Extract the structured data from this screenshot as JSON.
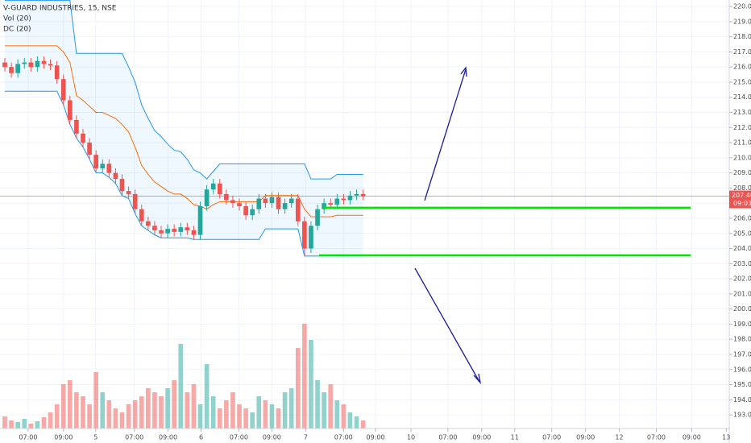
{
  "chart_data": {
    "type": "candlestick",
    "title": "V-GUARD INDUSTRIES, 15, NSE",
    "indicators": [
      "Vol (20)",
      "DC (20)"
    ],
    "open": [
      216.3,
      216.0,
      215.6,
      216.2,
      216.3,
      216.0,
      216.4,
      216.2,
      216.1,
      215.2,
      213.8,
      212.5,
      211.6,
      211.0,
      210.2,
      209.3,
      209.6,
      209.0,
      208.6,
      207.8,
      207.6,
      206.6,
      205.8,
      205.5,
      205.2,
      205.0,
      205.3,
      205.1,
      205.4,
      205.2,
      204.9,
      206.8,
      207.9,
      208.3,
      207.6,
      207.2,
      207.0,
      206.8,
      206.2,
      206.6,
      207.3,
      207.0,
      207.4,
      206.6,
      207.0,
      207.3,
      205.8,
      204.0,
      205.5,
      206.6,
      207.0,
      206.9,
      207.3,
      207.2,
      207.5,
      207.6
    ],
    "high": [
      216.6,
      216.3,
      216.5,
      216.6,
      216.6,
      216.7,
      216.7,
      216.5,
      216.4,
      215.5,
      214.1,
      212.8,
      211.9,
      211.3,
      210.5,
      209.9,
      209.9,
      209.3,
      208.9,
      208.1,
      207.9,
      206.9,
      206.1,
      205.8,
      205.5,
      205.6,
      205.6,
      205.7,
      205.7,
      205.5,
      207.1,
      208.2,
      208.6,
      208.6,
      207.9,
      207.5,
      207.3,
      207.1,
      206.9,
      207.6,
      207.6,
      207.7,
      207.7,
      207.3,
      207.6,
      207.6,
      206.1,
      205.8,
      206.9,
      207.3,
      207.3,
      207.6,
      207.6,
      207.8,
      207.9,
      207.9
    ],
    "low": [
      215.7,
      215.3,
      215.3,
      215.9,
      215.7,
      215.7,
      215.9,
      215.8,
      214.9,
      213.5,
      212.2,
      211.3,
      210.7,
      209.9,
      209.0,
      209.0,
      208.7,
      208.3,
      207.5,
      207.3,
      206.3,
      205.5,
      205.2,
      204.9,
      204.7,
      204.7,
      204.8,
      204.8,
      204.9,
      204.6,
      204.6,
      206.5,
      207.6,
      207.3,
      206.9,
      206.7,
      206.5,
      205.9,
      205.9,
      206.3,
      206.7,
      206.7,
      206.3,
      206.3,
      206.7,
      205.5,
      203.5,
      203.7,
      205.2,
      206.3,
      206.6,
      206.6,
      206.9,
      206.9,
      207.2,
      207.2
    ],
    "close": [
      216.0,
      215.6,
      216.2,
      216.3,
      216.0,
      216.4,
      216.2,
      216.1,
      215.2,
      213.8,
      212.5,
      211.6,
      211.0,
      210.2,
      209.3,
      209.6,
      209.0,
      208.6,
      207.8,
      207.6,
      206.6,
      205.8,
      205.5,
      205.2,
      205.0,
      205.3,
      205.1,
      205.4,
      205.2,
      204.9,
      206.8,
      207.9,
      208.3,
      207.6,
      207.2,
      207.0,
      206.8,
      206.2,
      206.6,
      207.3,
      207.0,
      207.4,
      206.6,
      207.0,
      207.3,
      205.8,
      204.0,
      205.5,
      206.6,
      207.0,
      206.9,
      207.3,
      207.2,
      207.5,
      207.6,
      207.46
    ],
    "volume": [
      15,
      10,
      8,
      12,
      6,
      9,
      14,
      20,
      30,
      55,
      60,
      45,
      40,
      30,
      70,
      45,
      35,
      25,
      20,
      30,
      35,
      40,
      50,
      45,
      40,
      50,
      60,
      105,
      45,
      55,
      30,
      80,
      40,
      25,
      35,
      45,
      30,
      25,
      20,
      40,
      35,
      30,
      25,
      45,
      50,
      100,
      130,
      110,
      60,
      45,
      55,
      35,
      30,
      20,
      15,
      10
    ],
    "dc_upper": [
      220.4,
      220.4,
      220.4,
      220.4,
      220.4,
      220.4,
      220.4,
      220.4,
      220.4,
      220.4,
      220.4,
      216.9,
      216.9,
      216.9,
      216.9,
      216.9,
      216.9,
      216.9,
      216.9,
      216.0,
      215.0,
      213.5,
      212.6,
      211.8,
      211.4,
      210.9,
      210.5,
      210.4,
      209.9,
      209.2,
      209.0,
      208.6,
      209.1,
      209.6,
      209.6,
      209.6,
      209.6,
      209.6,
      209.6,
      209.6,
      209.6,
      209.6,
      209.6,
      209.6,
      209.6,
      209.6,
      209.6,
      208.6,
      208.6,
      208.6,
      208.6,
      208.9,
      208.9,
      208.9,
      208.9,
      208.9
    ],
    "dc_middle": [
      217.4,
      217.4,
      217.4,
      217.4,
      217.4,
      217.4,
      217.4,
      217.4,
      217.4,
      217.0,
      216.3,
      214.1,
      213.8,
      213.4,
      213.0,
      213.0,
      212.8,
      212.6,
      212.2,
      211.7,
      210.7,
      209.5,
      208.9,
      208.4,
      208.1,
      207.8,
      207.6,
      207.6,
      207.3,
      206.9,
      206.8,
      206.6,
      206.9,
      207.1,
      207.1,
      207.1,
      207.1,
      207.1,
      207.1,
      207.1,
      207.5,
      207.5,
      207.5,
      207.5,
      207.5,
      207.5,
      206.6,
      206.1,
      206.1,
      206.1,
      206.1,
      206.2,
      206.2,
      206.2,
      206.2,
      206.2
    ],
    "dc_lower": [
      214.4,
      214.4,
      214.4,
      214.4,
      214.4,
      214.4,
      214.4,
      214.4,
      214.4,
      213.5,
      212.2,
      211.3,
      210.7,
      209.9,
      209.0,
      209.0,
      208.7,
      208.3,
      207.5,
      207.3,
      206.3,
      205.5,
      205.2,
      204.9,
      204.7,
      204.7,
      204.7,
      204.7,
      204.7,
      204.6,
      204.6,
      204.6,
      204.6,
      204.6,
      204.6,
      204.6,
      204.6,
      204.6,
      204.6,
      204.6,
      205.3,
      205.3,
      205.3,
      205.3,
      205.3,
      205.3,
      203.5,
      203.5,
      203.5,
      203.5,
      203.5,
      203.5,
      203.5,
      203.5,
      203.5,
      203.5
    ],
    "levels": [
      206.7,
      203.55
    ],
    "countdown": "09:03",
    "ylim": [
      192.1,
      220.43
    ],
    "yticks": [
      {
        "value": 193,
        "label": "193.00"
      },
      {
        "value": 194,
        "label": "194.00"
      },
      {
        "value": 195,
        "label": "195.00"
      },
      {
        "value": 196,
        "label": "196.00"
      },
      {
        "value": 197,
        "label": "197.00"
      },
      {
        "value": 198,
        "label": "198.00"
      },
      {
        "value": 199,
        "label": "199.00"
      },
      {
        "value": 200,
        "label": "200.00"
      },
      {
        "value": 201,
        "label": "201.00"
      },
      {
        "value": 202,
        "label": "202.00"
      },
      {
        "value": 203,
        "label": "203.00"
      },
      {
        "value": 204,
        "label": "204.00"
      },
      {
        "value": 205,
        "label": "205.00"
      },
      {
        "value": 206,
        "label": "206.00"
      },
      {
        "value": 207,
        "label": "207.00"
      },
      {
        "value": 208,
        "label": "208.00"
      },
      {
        "value": 209,
        "label": "209.00"
      },
      {
        "value": 210,
        "label": "210.00"
      },
      {
        "value": 211,
        "label": "211.00"
      },
      {
        "value": 212,
        "label": "212.00"
      },
      {
        "value": 213,
        "label": "213.00"
      },
      {
        "value": 214,
        "label": "214.00"
      },
      {
        "value": 215,
        "label": "215.00"
      },
      {
        "value": 216,
        "label": "216.00"
      },
      {
        "value": 217,
        "label": "217.00"
      },
      {
        "value": 218,
        "label": "218.00"
      },
      {
        "value": 219,
        "label": "219.00"
      },
      {
        "value": 220,
        "label": "220.00"
      }
    ],
    "xlim": [
      -0.74,
      111.2
    ],
    "xticks": [
      {
        "value": 3.58,
        "label": "07:00"
      },
      {
        "value": 9.01,
        "label": "09:00"
      },
      {
        "value": 13.95,
        "label": "5"
      },
      {
        "value": 19.88,
        "label": "07:00"
      },
      {
        "value": 25.06,
        "label": "09:00"
      },
      {
        "value": 30.12,
        "label": "6"
      },
      {
        "value": 35.93,
        "label": "07:00"
      },
      {
        "value": 40.99,
        "label": "09:00"
      },
      {
        "value": 46.17,
        "label": "7"
      },
      {
        "value": 51.98,
        "label": "07:00"
      },
      {
        "value": 56.91,
        "label": "09:00"
      },
      {
        "value": 62.35,
        "label": "10"
      },
      {
        "value": 68.02,
        "label": "07:00"
      },
      {
        "value": 73.21,
        "label": "09:00"
      },
      {
        "value": 78.27,
        "label": "11"
      },
      {
        "value": 83.95,
        "label": "07:00"
      },
      {
        "value": 89.14,
        "label": "09:00"
      },
      {
        "value": 94.32,
        "label": "12"
      },
      {
        "value": 100.0,
        "label": "07:00"
      },
      {
        "value": 105.43,
        "label": "09:00"
      },
      {
        "value": 110.74,
        "label": "13"
      }
    ],
    "up_color": "#26a69a",
    "down_color": "#ef5350",
    "dc_color": "#2196f3",
    "dc_mid_color": "#ff6d00",
    "level_color": "#00e600",
    "grid": true
  }
}
